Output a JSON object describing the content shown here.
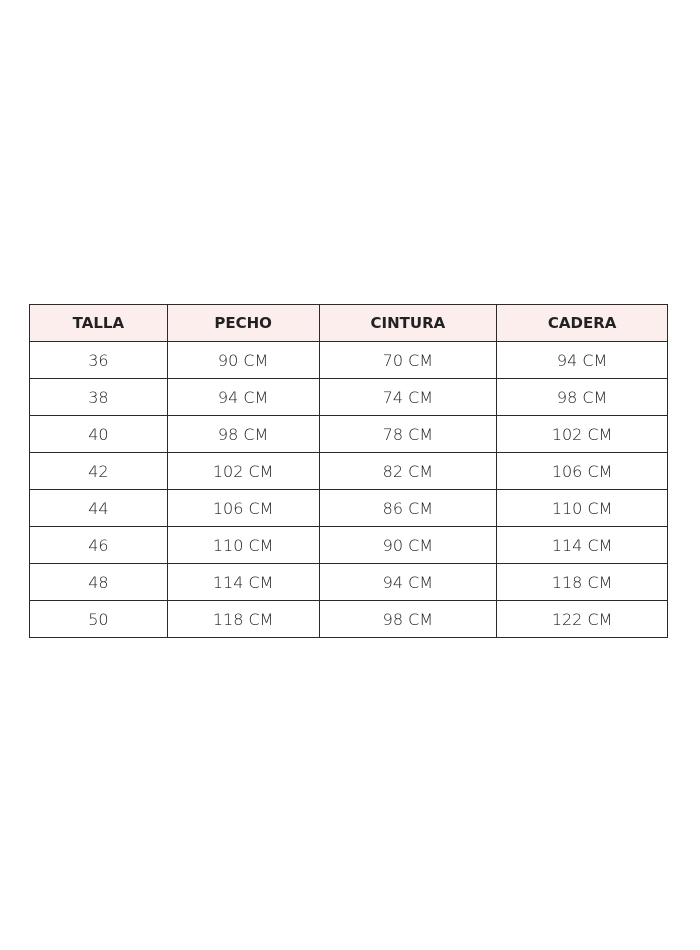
{
  "table": {
    "header_bg": "#fdeeee",
    "headers": [
      "TALLA",
      "PECHO",
      "CINTURA",
      "CADERA"
    ],
    "rows": [
      [
        "36",
        "90 CM",
        "70 CM",
        "94 CM"
      ],
      [
        "38",
        "94 CM",
        "74 CM",
        "98 CM"
      ],
      [
        "40",
        "98 CM",
        "78 CM",
        "102 CM"
      ],
      [
        "42",
        "102 CM",
        "82 CM",
        "106 CM"
      ],
      [
        "44",
        "106 CM",
        "86 CM",
        "110 CM"
      ],
      [
        "46",
        "110 CM",
        "90 CM",
        "114 CM"
      ],
      [
        "48",
        "114 CM",
        "94 CM",
        "118 CM"
      ],
      [
        "50",
        "118 CM",
        "98 CM",
        "122 CM"
      ]
    ]
  }
}
